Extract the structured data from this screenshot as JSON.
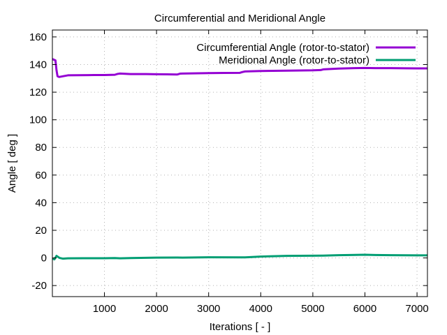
{
  "chart_data": {
    "type": "line",
    "title": "Circumferential and Meridional Angle",
    "xlabel": "Iterations [ - ]",
    "ylabel": "Angle [ deg ]",
    "xlim": [
      1,
      7200
    ],
    "ylim": [
      -28,
      165
    ],
    "xticks": [
      1000,
      2000,
      3000,
      4000,
      5000,
      6000,
      7000
    ],
    "yticks": [
      -20,
      0,
      20,
      40,
      60,
      80,
      100,
      120,
      140,
      160
    ],
    "grid": true,
    "legend_position": "top-right",
    "series": [
      {
        "name": "Circumferential Angle (rotor-to-stator)",
        "color": "#9400d3",
        "x": [
          1,
          60,
          80,
          100,
          130,
          200,
          300,
          500,
          800,
          1000,
          1200,
          1250,
          1300,
          1400,
          1500,
          1800,
          2000,
          2200,
          2400,
          2450,
          2500,
          2700,
          3000,
          3300,
          3600,
          3650,
          3700,
          4000,
          4500,
          5000,
          5150,
          5200,
          5500,
          5800,
          6000,
          6200,
          6500,
          6800,
          7000,
          7200
        ],
        "y": [
          144,
          143,
          136,
          131.5,
          131,
          131.5,
          132.2,
          132.3,
          132.4,
          132.4,
          132.6,
          133.2,
          133.5,
          133.3,
          133.1,
          133.1,
          133.0,
          132.9,
          132.8,
          133.4,
          133.5,
          133.6,
          133.8,
          133.9,
          134.0,
          134.6,
          135.0,
          135.3,
          135.6,
          135.8,
          136.0,
          136.5,
          137.1,
          137.4,
          137.5,
          137.4,
          137.4,
          137.3,
          137.2,
          137.2
        ]
      },
      {
        "name": "Meridional Angle (rotor-to-stator)",
        "color": "#009e73",
        "x": [
          1,
          40,
          80,
          100,
          140,
          200,
          300,
          600,
          1000,
          1200,
          1300,
          1500,
          2000,
          2400,
          2500,
          3000,
          3600,
          3700,
          4000,
          4500,
          5000,
          5200,
          5500,
          6000,
          6200,
          6500,
          7000,
          7200
        ],
        "y": [
          -0.5,
          -1.0,
          1.5,
          1.0,
          0.0,
          -0.5,
          -0.3,
          -0.2,
          -0.2,
          -0.1,
          -0.3,
          -0.1,
          0.2,
          0.3,
          0.2,
          0.5,
          0.4,
          0.4,
          1.0,
          1.5,
          1.6,
          1.7,
          2.0,
          2.3,
          2.1,
          2.0,
          1.9,
          1.9
        ]
      }
    ]
  }
}
